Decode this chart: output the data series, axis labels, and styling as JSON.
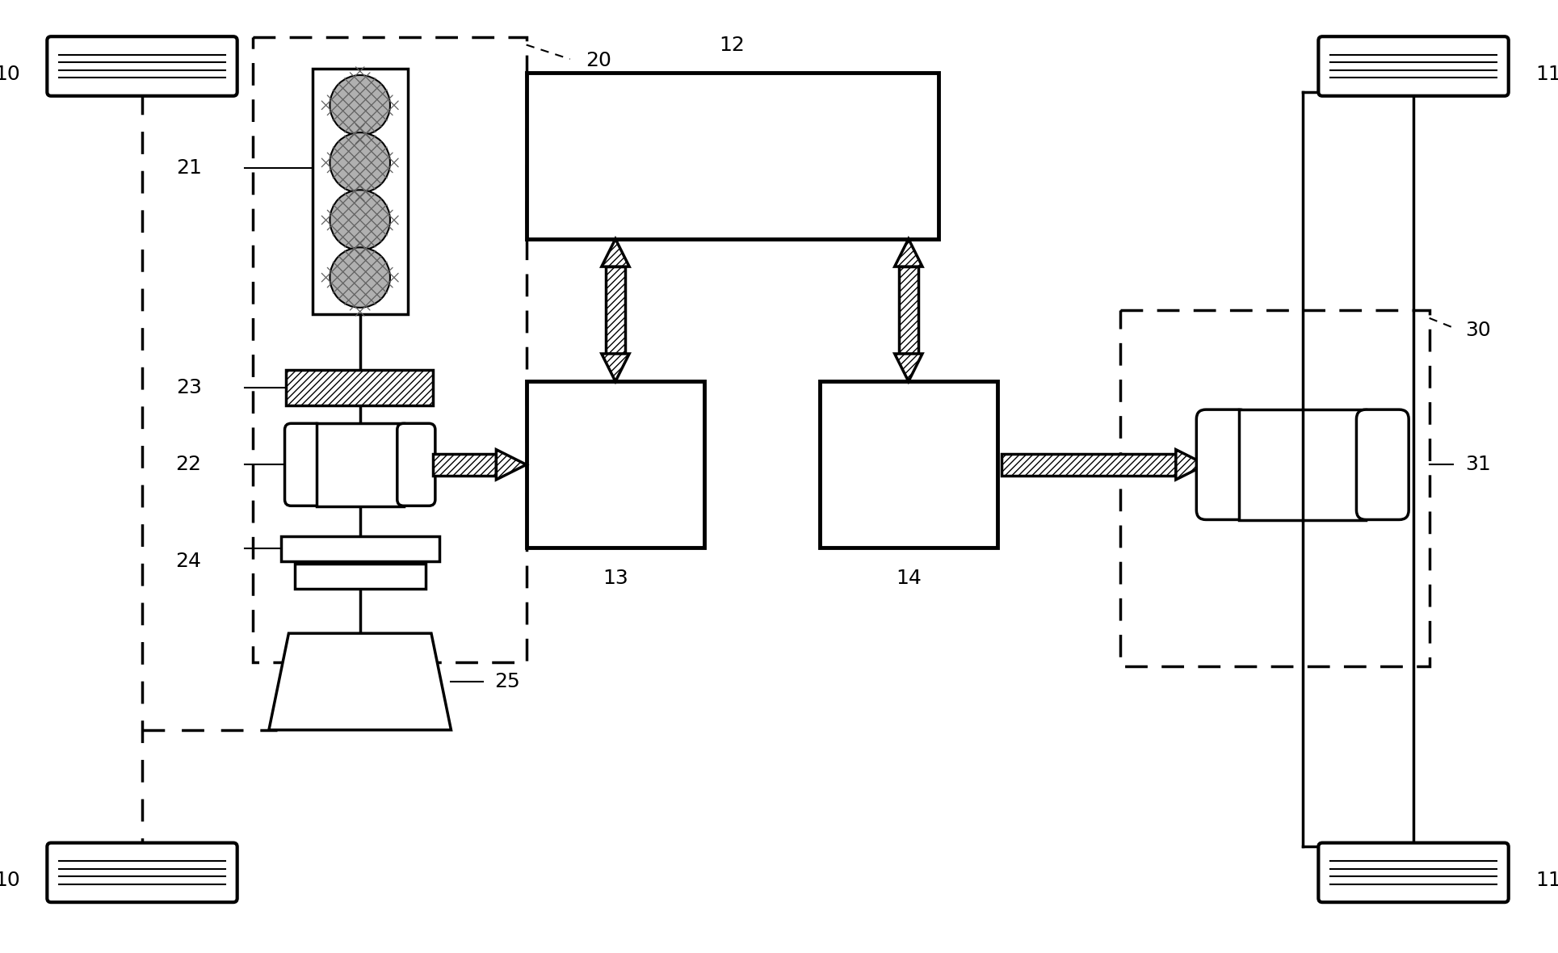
{
  "bg_color": "#ffffff",
  "line_color": "#000000",
  "label_fontsize": 18,
  "figsize": [
    19.29,
    11.8
  ],
  "dpi": 100,
  "labels": {
    "10_tl": "10",
    "10_bl": "10",
    "11_tr": "11",
    "11_br": "11",
    "12": "12",
    "13": "13",
    "14": "14",
    "20": "20",
    "21": "21",
    "22": "22",
    "23": "23",
    "24": "24",
    "25": "25",
    "30": "30",
    "31": "31"
  }
}
